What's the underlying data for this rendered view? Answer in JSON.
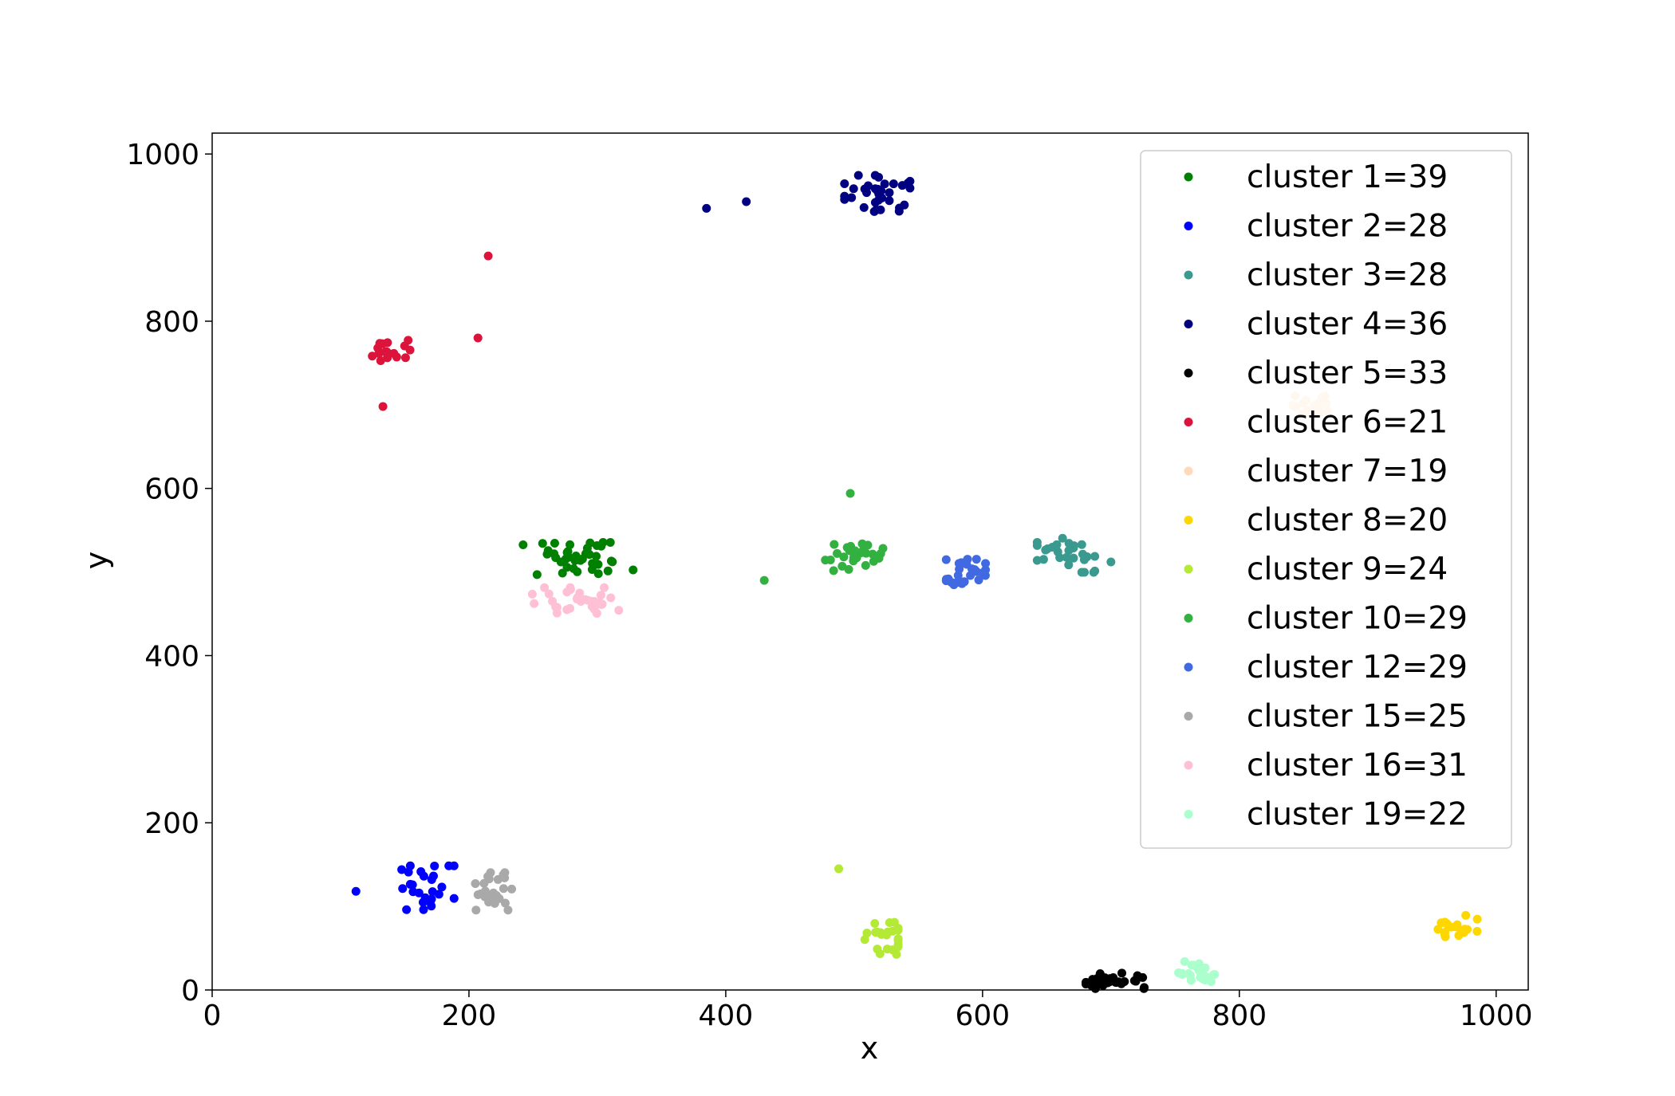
{
  "chart_data": {
    "type": "scatter",
    "xlabel": "x",
    "ylabel": "y",
    "xlim": [
      0,
      1025
    ],
    "ylim": [
      0,
      1025
    ],
    "xticks": [
      0,
      200,
      400,
      600,
      800,
      1000
    ],
    "yticks": [
      0,
      200,
      400,
      600,
      800,
      1000
    ],
    "grid": false,
    "legend_position": "top-right",
    "series": [
      {
        "name": "cluster 1=39",
        "color": "#008000",
        "clusters": [
          {
            "center": [
              285,
              515
            ],
            "spread": [
              42,
              20
            ],
            "count": 39
          }
        ]
      },
      {
        "name": "cluster 2=28",
        "color": "#0000ff",
        "clusters": [
          {
            "center": [
              168,
              122
            ],
            "spread": [
              20,
              26
            ],
            "count": 27
          }
        ],
        "points": [
          [
            112,
            118
          ]
        ]
      },
      {
        "name": "cluster 3=28",
        "color": "#3a9a8f",
        "clusters": [
          {
            "center": [
              665,
              520
            ],
            "spread": [
              22,
              20
            ],
            "count": 27
          }
        ],
        "points": [
          [
            700,
            512
          ]
        ]
      },
      {
        "name": "cluster 4=36",
        "color": "#000080",
        "clusters": [
          {
            "center": [
              518,
              952
            ],
            "spread": [
              25,
              22
            ],
            "count": 34
          }
        ],
        "points": [
          [
            385,
            935
          ],
          [
            416,
            943
          ]
        ]
      },
      {
        "name": "cluster 5=33",
        "color": "#000000",
        "clusters": [
          {
            "center": [
              705,
              10
            ],
            "spread": [
              24,
              10
            ],
            "count": 33
          }
        ]
      },
      {
        "name": "cluster 6=21",
        "color": "#dc143c",
        "clusters": [
          {
            "center": [
              140,
              765
            ],
            "spread": [
              15,
              12
            ],
            "count": 18
          }
        ],
        "points": [
          [
            133,
            698
          ],
          [
            207,
            780
          ],
          [
            215,
            878
          ]
        ]
      },
      {
        "name": "cluster 7=19",
        "color": "#ffdab9",
        "clusters": [
          {
            "center": [
              858,
              702
            ],
            "spread": [
              17,
              13
            ],
            "count": 19
          }
        ]
      },
      {
        "name": "cluster 8=20",
        "color": "#ffd700",
        "clusters": [
          {
            "center": [
              970,
              74
            ],
            "spread": [
              15,
              15
            ],
            "count": 20
          }
        ]
      },
      {
        "name": "cluster 9=24",
        "color": "#b4e936",
        "clusters": [
          {
            "center": [
              520,
              65
            ],
            "spread": [
              14,
              22
            ],
            "count": 23
          }
        ],
        "points": [
          [
            488,
            145
          ]
        ]
      },
      {
        "name": "cluster 10=29",
        "color": "#32b040",
        "clusters": [
          {
            "center": [
              500,
              518
            ],
            "spread": [
              22,
              17
            ],
            "count": 27
          }
        ],
        "points": [
          [
            497,
            594
          ],
          [
            430,
            490
          ]
        ]
      },
      {
        "name": "cluster 12=29",
        "color": "#4169e1",
        "clusters": [
          {
            "center": [
              587,
              500
            ],
            "spread": [
              15,
              15
            ],
            "count": 29
          }
        ]
      },
      {
        "name": "cluster 15=25",
        "color": "#a9a9a9",
        "clusters": [
          {
            "center": [
              218,
              118
            ],
            "spread": [
              15,
              22
            ],
            "count": 25
          }
        ]
      },
      {
        "name": "cluster 16=31",
        "color": "#ffc0d5",
        "clusters": [
          {
            "center": [
              283,
              465
            ],
            "spread": [
              33,
              16
            ],
            "count": 31
          }
        ]
      },
      {
        "name": "cluster 19=22",
        "color": "#aaffcc",
        "clusters": [
          {
            "center": [
              770,
              20
            ],
            "spread": [
              17,
              14
            ],
            "count": 22
          }
        ]
      }
    ]
  }
}
